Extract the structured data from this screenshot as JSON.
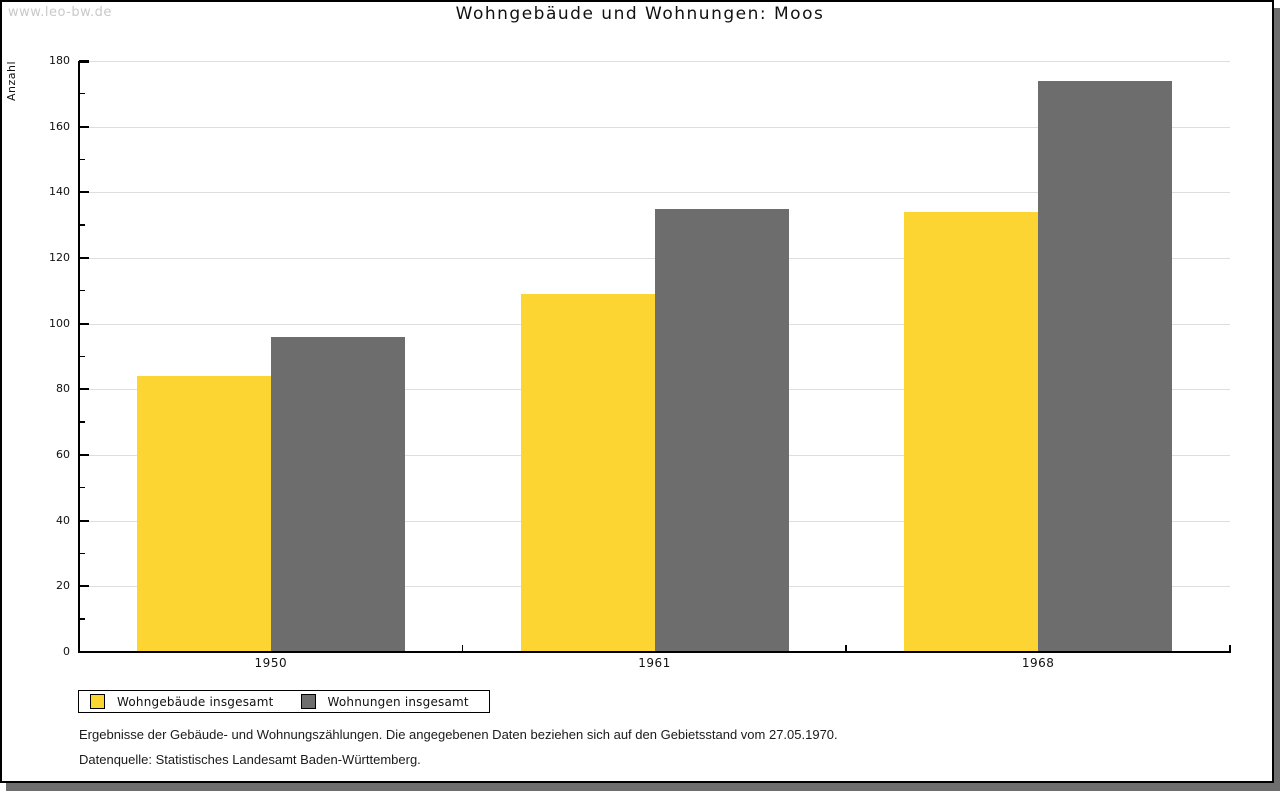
{
  "page": {
    "watermark": "www.leo-bw.de",
    "title": "Wohngebäude und Wohnungen: Moos"
  },
  "chart_data": {
    "type": "bar",
    "title": "Wohngebäude und Wohnungen: Moos",
    "ylabel": "Anzahl",
    "xlabel": "",
    "categories": [
      "1950",
      "1961",
      "1968"
    ],
    "series": [
      {
        "name": "Wohngebäude insgesamt",
        "color": "#FCD532",
        "values": [
          84,
          109,
          134
        ]
      },
      {
        "name": "Wohnungen insgesamt",
        "color": "#6D6D6D",
        "values": [
          96,
          135,
          174
        ]
      }
    ],
    "ylim": [
      0,
      180
    ],
    "ytick_major": 20,
    "ytick_minor": 10,
    "grid": true,
    "legend_position": "bottom-left"
  },
  "footnotes": {
    "line1": "Ergebnisse der Gebäude- und Wohnungszählungen. Die angegebenen Daten beziehen sich auf den Gebietsstand vom 27.05.1970.",
    "line2": "Datenquelle: Statistisches Landesamt Baden-Württemberg."
  },
  "colors": {
    "gridline": "#DEDEDE",
    "axis": "#000000",
    "text": "#111111",
    "shadow": "#6E6E6E",
    "watermark": "#C9C9C9"
  }
}
